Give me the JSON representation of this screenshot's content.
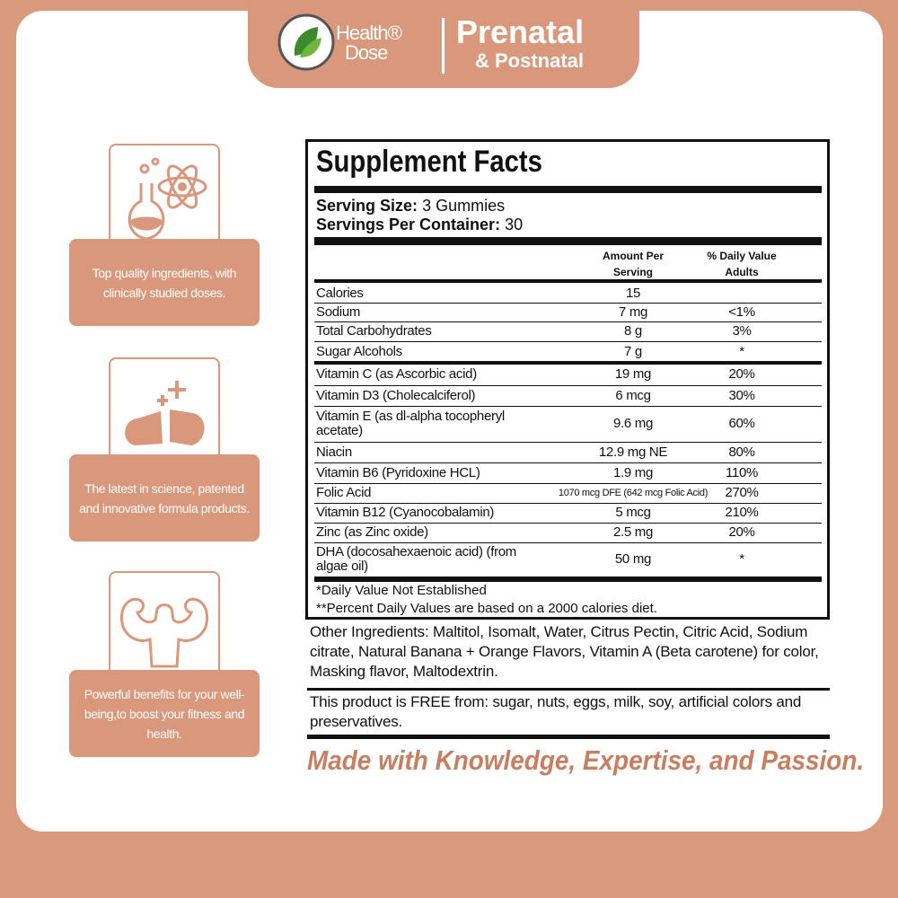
{
  "header": {
    "brand_line1": "Health®",
    "brand_line2": "Dose",
    "title": "Prenatal",
    "subtitle": "& Postnatal"
  },
  "features": [
    "Top quality ingredients, with clinically studied doses.",
    "The latest in science, patented and innovative formula products.",
    "Powerful benefits for your well-being,to boost your fitness and health."
  ],
  "facts": {
    "title": "Supplement Facts",
    "serving_size_label": "Serving Size:",
    "serving_size": "3 Gummies",
    "servings_label": "Servings Per Container:",
    "servings": "30",
    "column_amount": "Amount Per Serving",
    "column_dv": "% Daily Value Adults",
    "rows": [
      {
        "name": "Calories",
        "amount": "15"
      },
      {
        "name": "Sodium",
        "amount": "7 mg",
        "dv": "<1%"
      },
      {
        "name": "Total Carbohydrates",
        "amount": "8 g",
        "dv": "3%"
      },
      {
        "name": "Sugar Alcohols",
        "amount": "7 g",
        "dv": "*"
      },
      {
        "name": "Vitamin C (as Ascorbic acid)",
        "amount": "19 mg",
        "dv": "20%"
      },
      {
        "name": "Vitamin D3 (Cholecalciferol)",
        "amount": "6 mcg",
        "dv": "30%"
      },
      {
        "name": "Vitamin E (as dl-alpha tocopheryl acetate)",
        "amount": "9.6 mg",
        "dv": "60%"
      },
      {
        "name": "Niacin",
        "amount": "12.9 mg NE",
        "dv": "80%"
      },
      {
        "name": "Vitamin B6 (Pyridoxine HCL)",
        "amount": "1.9 mg",
        "dv": "110%"
      },
      {
        "name": "Folic Acid",
        "amount": "1070 mcg DFE (642 mcg Folic Acid)",
        "dv": "270%"
      },
      {
        "name": "Vitamin B12 (Cyanocobalamin)",
        "amount": "5 mcg",
        "dv": "210%"
      },
      {
        "name": "Zinc (as Zinc oxide)",
        "amount": "2.5 mg",
        "dv": "20%"
      },
      {
        "name": "DHA (docosahexaenoic acid) (from algae oil)",
        "amount": "50 mg",
        "dv": "*"
      }
    ],
    "footnotes": [
      "*Daily Value Not Established",
      "**Percent Daily Values are based on a 2000 calories diet."
    ]
  },
  "other_ingredients": "Other Ingredients: Maltitol, Isomalt, Water, Citrus Pectin, Citric Acid, Sodium citrate, Natural Banana + Orange Flavors, Vitamin A (Beta carotene) for color, Masking flavor, Maltodextrin.",
  "free_from": "This product is FREE from: sugar, nuts, eggs, milk, soy, artificial colors and preservatives.",
  "tagline": "Made with Knowledge, Expertise, and Passion."
}
